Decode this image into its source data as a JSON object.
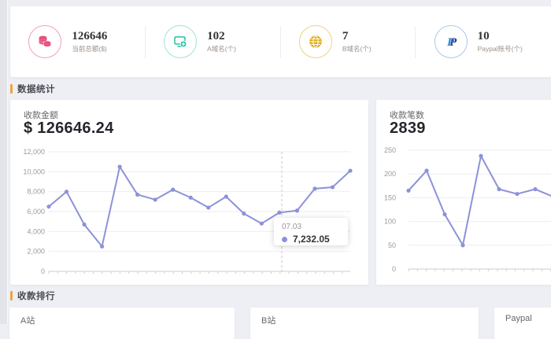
{
  "stats": {
    "items": [
      {
        "icon": "coins-icon",
        "color": "#e8517e",
        "value": "126646",
        "label": "当前总额($)"
      },
      {
        "icon": "domain-add-icon",
        "color": "#1ec2a0",
        "value": "102",
        "label": "A域名(个)"
      },
      {
        "icon": "globe-icon",
        "color": "#ddaf17",
        "value": "7",
        "label": "B域名(个)"
      },
      {
        "icon": "paypal-icon",
        "color": "#2f7fd3",
        "value": "10",
        "label": "Paypal账号(个)"
      }
    ]
  },
  "sections": {
    "stats_title": "数据统计",
    "ranking_title": "收款排行",
    "accent_color": "#efa33d"
  },
  "chart_data": [
    {
      "type": "line",
      "title": "收款金额",
      "display_value": "$ 126646.24",
      "ylim": [
        0,
        12000
      ],
      "ytick_interval": 2000,
      "ytick_format": "comma",
      "grid": true,
      "line_color": "#8c92d8",
      "values": [
        6500,
        8000,
        4700,
        2500,
        10500,
        7700,
        7200,
        8200,
        7400,
        6400,
        7500,
        5800,
        4800,
        5900,
        6100,
        8300,
        8450,
        10100
      ],
      "tooltip": {
        "x_label": "07.03",
        "value": "7,232.05"
      }
    },
    {
      "type": "line",
      "title": "收款笔数",
      "display_value": "2839",
      "ylim": [
        0,
        250
      ],
      "ytick_interval": 50,
      "ytick_format": "plain",
      "grid": true,
      "line_color": "#8c92d8",
      "values": [
        165,
        207,
        115,
        50,
        238,
        168,
        158,
        168,
        152
      ]
    }
  ],
  "ranking": {
    "cards": [
      {
        "label": "A站"
      },
      {
        "label": "B站"
      },
      {
        "label": "Paypal"
      }
    ]
  }
}
